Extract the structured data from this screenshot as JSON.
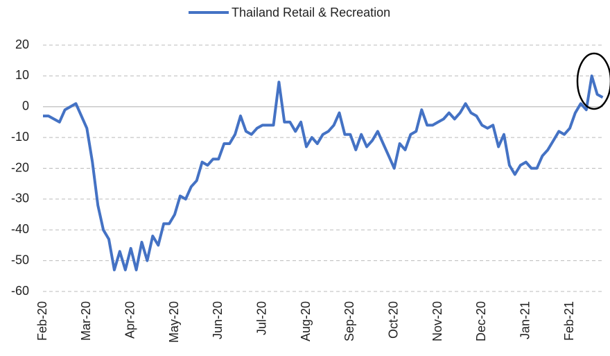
{
  "chart_data": {
    "type": "line",
    "categories": [
      "Feb-20",
      null,
      null,
      null,
      null,
      null,
      null,
      null,
      "Mar-20",
      null,
      null,
      null,
      null,
      null,
      null,
      null,
      "Apr-20",
      null,
      null,
      null,
      null,
      null,
      null,
      null,
      "May-20",
      null,
      null,
      null,
      null,
      null,
      null,
      null,
      "Jun-20",
      null,
      null,
      null,
      null,
      null,
      null,
      null,
      "Jul-20",
      null,
      null,
      null,
      null,
      null,
      null,
      null,
      "Aug-20",
      null,
      null,
      null,
      null,
      null,
      null,
      null,
      "Sep-20",
      null,
      null,
      null,
      null,
      null,
      null,
      null,
      "Oct-20",
      null,
      null,
      null,
      null,
      null,
      null,
      null,
      "Nov-20",
      null,
      null,
      null,
      null,
      null,
      null,
      null,
      "Dec-20",
      null,
      null,
      null,
      null,
      null,
      null,
      null,
      "Jan-21",
      null,
      null,
      null,
      null,
      null,
      null,
      null,
      "Feb-21",
      null,
      null,
      null,
      null,
      null,
      null
    ],
    "series": [
      {
        "name": "Thailand Retail & Recreation",
        "color": "#4472c4",
        "values": [
          -3,
          -3,
          -4,
          -5,
          -1,
          0,
          1,
          -3,
          -7,
          -18,
          -32,
          -40,
          -43,
          -53,
          -47,
          -53,
          -46,
          -53,
          -44,
          -50,
          -42,
          -45,
          -38,
          -38,
          -35,
          -29,
          -30,
          -26,
          -24,
          -18,
          -19,
          -17,
          -17,
          -12,
          -12,
          -9,
          -3,
          -8,
          -9,
          -7,
          -6,
          -6,
          -6,
          8,
          -5,
          -5,
          -8,
          -5,
          -13,
          -10,
          -12,
          -9,
          -8,
          -6,
          -2,
          -9,
          -9,
          -14,
          -9,
          -13,
          -11,
          -8,
          -12,
          -16,
          -20,
          -12,
          -14,
          -9,
          -8,
          -1,
          -6,
          -6,
          -5,
          -4,
          -2,
          -4,
          -2,
          1,
          -2,
          -3,
          -6,
          -7,
          -6,
          -13,
          -9,
          -19,
          -22,
          -19,
          -18,
          -20,
          -20,
          -16,
          -14,
          -11,
          -8,
          -9,
          -7,
          -2,
          1,
          -1,
          10,
          4,
          3
        ]
      }
    ],
    "ylim": [
      -60,
      20
    ],
    "yticks": [
      -60,
      -50,
      -40,
      -30,
      -20,
      -10,
      0,
      10,
      20
    ],
    "grid": true,
    "legend": "top"
  }
}
